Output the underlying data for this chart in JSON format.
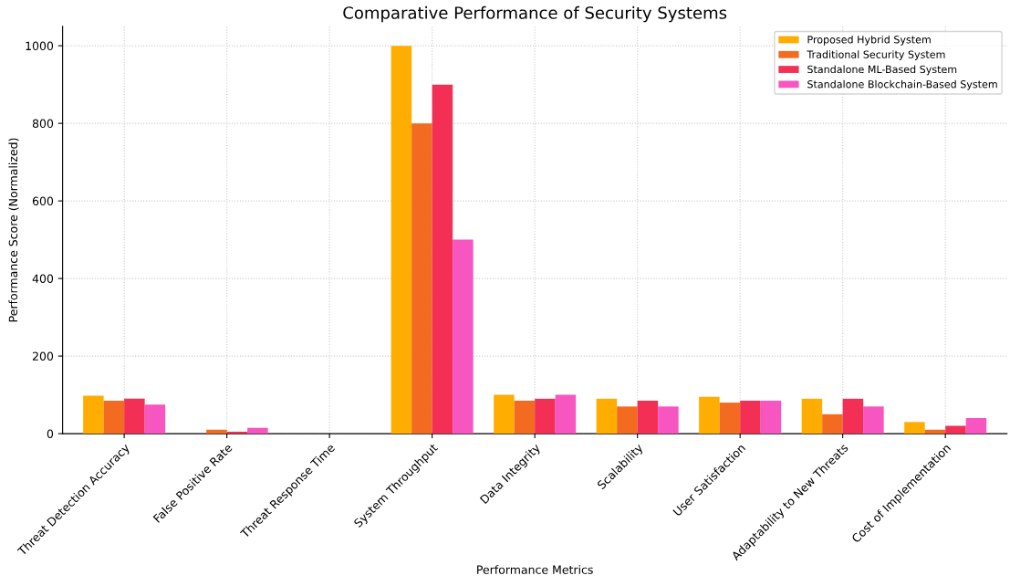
{
  "chart_data": {
    "type": "bar",
    "title": "Comparative Performance of Security Systems",
    "xlabel": "Performance Metrics",
    "ylabel": "Performance Score (Normalized)",
    "categories": [
      "Threat Detection Accuracy",
      "False Positive Rate",
      "Threat Response Time",
      "System Throughput",
      "Data Integrity",
      "Scalability",
      "User Satisfaction",
      "Adaptability to New Threats",
      "Cost of Implementation"
    ],
    "series": [
      {
        "name": "Proposed Hybrid System",
        "color": "#ffad00",
        "values": [
          98,
          0,
          0,
          1000,
          100,
          90,
          95,
          90,
          30
        ]
      },
      {
        "name": "Traditional Security System",
        "color": "#f26b21",
        "values": [
          85,
          10,
          0,
          800,
          85,
          70,
          80,
          50,
          10
        ]
      },
      {
        "name": "Standalone ML-Based System",
        "color": "#f42f55",
        "values": [
          90,
          5,
          0,
          900,
          90,
          85,
          85,
          90,
          20
        ]
      },
      {
        "name": "Standalone Blockchain-Based System",
        "color": "#f755c0",
        "values": [
          75,
          15,
          0,
          500,
          100,
          70,
          85,
          70,
          40
        ]
      }
    ],
    "ylim": [
      0,
      1050
    ],
    "yticks": [
      0,
      200,
      400,
      600,
      800,
      1000
    ],
    "grid": true,
    "legend": "top right"
  }
}
